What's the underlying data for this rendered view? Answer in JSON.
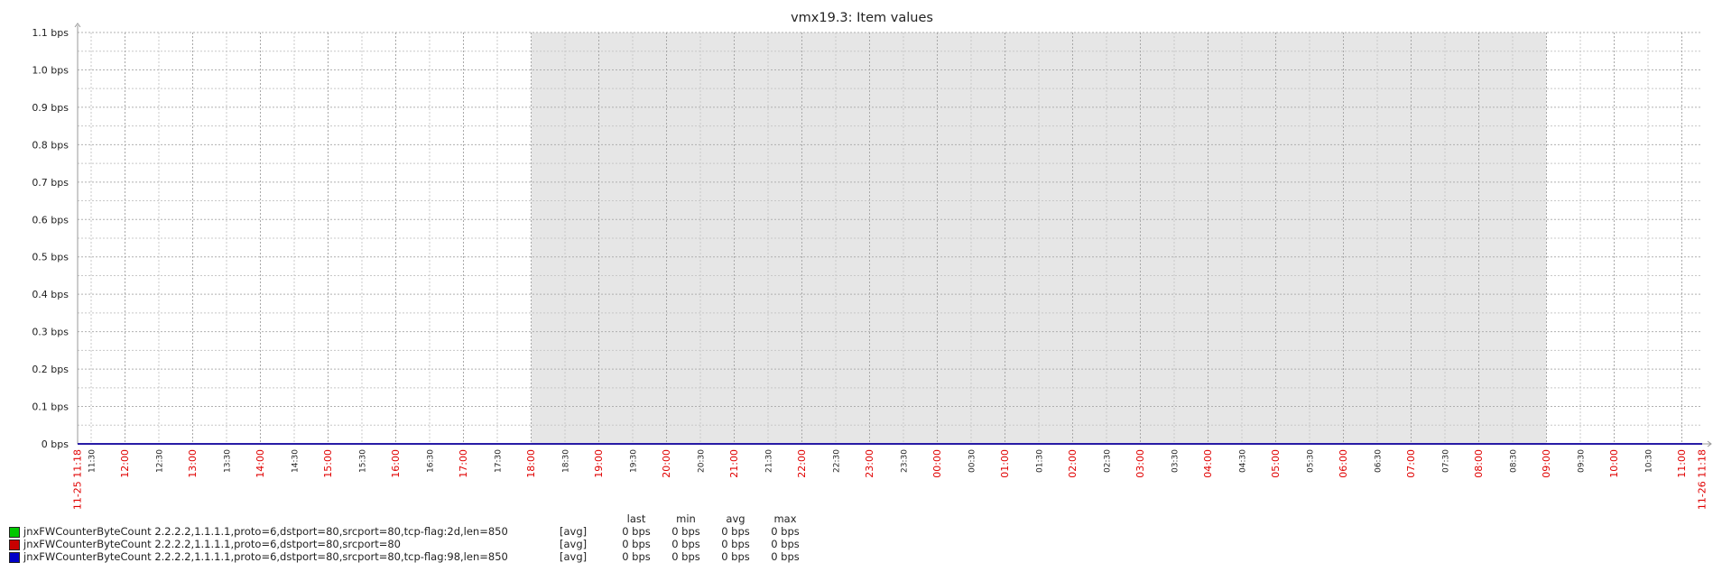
{
  "chart_data": {
    "type": "line",
    "title": "vmx19.3: Item values",
    "y_ticks": [
      "0 bps",
      "0.1 bps",
      "0.2 bps",
      "0.3 bps",
      "0.4 bps",
      "0.5 bps",
      "0.6 bps",
      "0.7 bps",
      "0.8 bps",
      "0.9 bps",
      "1.0 bps",
      "1.1 bps"
    ],
    "ylim": [
      0,
      1.1
    ],
    "y_unit": "bps",
    "x_start_label": "11-25 11:18",
    "x_end_label": "11-26 11:18",
    "x_ticks": [
      "11:30",
      "12:00",
      "12:30",
      "13:00",
      "13:30",
      "14:00",
      "14:30",
      "15:00",
      "15:30",
      "16:00",
      "16:30",
      "17:00",
      "17:30",
      "18:00",
      "18:30",
      "19:00",
      "19:30",
      "20:00",
      "20:30",
      "21:00",
      "21:30",
      "22:00",
      "22:30",
      "23:00",
      "23:30",
      "00:00",
      "00:30",
      "01:00",
      "01:30",
      "02:00",
      "02:30",
      "03:00",
      "03:30",
      "04:00",
      "04:30",
      "05:00",
      "05:30",
      "06:00",
      "06:30",
      "07:00",
      "07:30",
      "08:00",
      "08:30",
      "09:00",
      "09:30",
      "10:00",
      "10:30",
      "11:00"
    ],
    "shaded_period": [
      "18:00",
      "09:00"
    ],
    "grid": true,
    "series": [
      {
        "name": "jnxFWCounterByteCount 2.2.2.2,1.1.1.1,proto=6,dstport=80,srcport=80,tcp-flag:2d,len=850",
        "color": "#00c800",
        "values": [
          0,
          0
        ]
      },
      {
        "name": "jnxFWCounterByteCount 2.2.2.2,1.1.1.1,proto=6,dstport=80,srcport=80",
        "color": "#c80000",
        "values": [
          0,
          0
        ]
      },
      {
        "name": "jnxFWCounterByteCount 2.2.2.2,1.1.1.1,proto=6,dstport=80,srcport=80,tcp-flag:98,len=850",
        "color": "#0000c8",
        "values": [
          0,
          0
        ]
      }
    ]
  },
  "legend": {
    "columns": [
      "last",
      "min",
      "avg",
      "max"
    ],
    "rows": [
      {
        "label": "jnxFWCounterByteCount 2.2.2.2,1.1.1.1,proto=6,dstport=80,srcport=80,tcp-flag:2d,len=850",
        "color": "#00c800",
        "fn": "[avg]",
        "last": "0 bps",
        "min": "0 bps",
        "avg": "0 bps",
        "max": "0 bps"
      },
      {
        "label": "jnxFWCounterByteCount 2.2.2.2,1.1.1.1,proto=6,dstport=80,srcport=80",
        "color": "#c80000",
        "fn": "[avg]",
        "last": "0 bps",
        "min": "0 bps",
        "avg": "0 bps",
        "max": "0 bps"
      },
      {
        "label": "jnxFWCounterByteCount 2.2.2.2,1.1.1.1,proto=6,dstport=80,srcport=80,tcp-flag:98,len=850",
        "color": "#0000c8",
        "fn": "[avg]",
        "last": "0 bps",
        "min": "0 bps",
        "avg": "0 bps",
        "max": "0 bps"
      }
    ]
  }
}
